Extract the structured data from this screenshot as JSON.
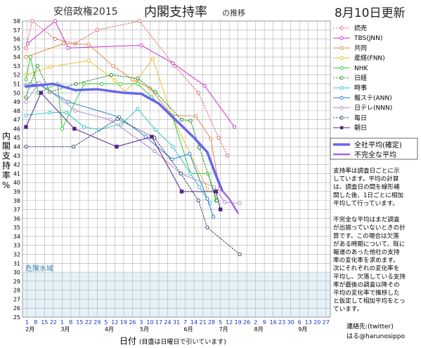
{
  "header": {
    "title_prefix": "安倍政権2015",
    "title_main": "内閣支持率",
    "title_suffix": "の推移",
    "updated": "8月10日更新"
  },
  "colors": {
    "grid": "#b0b0b0",
    "plot_bg": "#ffffff",
    "danger_bg": "#e4f2f8",
    "danger_text": "#2a7fb0",
    "x_ticks": "#1a33cc"
  },
  "chart_data": {
    "type": "line",
    "ylabel": "内閣支持率 %",
    "xlabel": "日付",
    "xlabel_note": "(目盛は日曜日で引いています)",
    "ylim": [
      25,
      58
    ],
    "y_ticks": [
      25,
      26,
      27,
      28,
      29,
      30,
      31,
      32,
      33,
      34,
      35,
      36,
      37,
      38,
      39,
      40,
      41,
      42,
      43,
      44,
      45,
      46,
      47,
      48,
      49,
      50,
      51,
      52,
      53,
      54,
      55,
      56,
      57,
      58
    ],
    "x_days": [
      "1",
      "8",
      "15",
      "22",
      "1",
      "8",
      "15",
      "22",
      "29",
      "5",
      "12",
      "19",
      "26",
      "3",
      "10",
      "17",
      "24",
      "31",
      "7",
      "14",
      "21",
      "28",
      "5",
      "12",
      "19",
      "26",
      "2",
      "9",
      "16",
      "23",
      "30",
      "6",
      "13",
      "20",
      "27"
    ],
    "x_months": [
      {
        "label": "2月",
        "index": 0
      },
      {
        "label": "3月",
        "index": 4
      },
      {
        "label": "4月",
        "index": 9
      },
      {
        "label": "5月",
        "index": 13
      },
      {
        "label": "6月",
        "index": 18
      },
      {
        "label": "7月",
        "index": 22
      },
      {
        "label": "8月",
        "index": 26
      },
      {
        "label": "9月",
        "index": 31
      }
    ],
    "grid": true,
    "danger_zone": {
      "label": "危険水域",
      "from": 25,
      "to": 30
    },
    "legend_position": "right",
    "series": [
      {
        "name": "読売",
        "color": "#e06a6a",
        "dash": "2,2",
        "marker": "circle",
        "width": 1,
        "points": [
          [
            -0.1,
            55
          ],
          [
            0.6,
            58
          ],
          [
            3.2,
            56
          ],
          [
            5.5,
            55.5
          ],
          [
            8,
            57
          ],
          [
            12.8,
            58
          ],
          [
            16.8,
            53
          ],
          [
            19.5,
            50
          ],
          [
            21.8,
            45
          ],
          [
            22.8,
            43
          ]
        ]
      },
      {
        "name": "TBS(JNN)",
        "color": "#cc33cc",
        "dash": "",
        "marker": "circle",
        "width": 1,
        "points": [
          [
            0.1,
            55.5
          ],
          [
            3.2,
            58
          ],
          [
            4.7,
            55
          ],
          [
            13,
            55.3
          ],
          [
            16.6,
            53.3
          ],
          [
            20.2,
            50.8
          ],
          [
            23.6,
            46.2
          ]
        ]
      },
      {
        "name": "共同",
        "color": "#e08a4a",
        "dash": "",
        "marker": "circle",
        "width": 1,
        "points": [
          [
            -0.1,
            54
          ],
          [
            4.2,
            55.5
          ],
          [
            7,
            55.4
          ],
          [
            9.8,
            53
          ],
          [
            12,
            51.5
          ],
          [
            14,
            50.5
          ],
          [
            16.5,
            47.5
          ],
          [
            19.2,
            47.4
          ],
          [
            20.9,
            44.9
          ],
          [
            21.9,
            39.3
          ]
        ]
      },
      {
        "name": "産経(FNN)",
        "color": "#e8c22e",
        "dash": "",
        "marker": "circle",
        "width": 1,
        "points": [
          [
            -0.1,
            52
          ],
          [
            2.7,
            52.9
          ],
          [
            7,
            53.6
          ],
          [
            10,
            51.4
          ],
          [
            11.1,
            50.1
          ],
          [
            12.6,
            51.5
          ],
          [
            14.3,
            53.8
          ],
          [
            16.5,
            47.4
          ],
          [
            20.5,
            39.3
          ]
        ]
      },
      {
        "name": "NHK",
        "color": "#33cc33",
        "dash": "",
        "marker": "circle",
        "width": 1,
        "points": [
          [
            -0.1,
            51.5
          ],
          [
            0.4,
            54
          ],
          [
            1.3,
            50
          ],
          [
            3.5,
            51
          ],
          [
            4,
            46
          ],
          [
            6.5,
            51
          ],
          [
            8.5,
            51
          ],
          [
            10.6,
            51
          ],
          [
            12.6,
            51
          ],
          [
            14.2,
            49.5
          ],
          [
            16.5,
            47.5
          ],
          [
            18.6,
            41
          ],
          [
            20.6,
            41
          ],
          [
            21.5,
            38
          ]
        ]
      },
      {
        "name": "日経",
        "color": "#228822",
        "dash": "2,2",
        "marker": "circle",
        "width": 1,
        "points": [
          [
            -0.1,
            49.5
          ],
          [
            0.4,
            51
          ],
          [
            1.2,
            53
          ],
          [
            2.6,
            50.1
          ],
          [
            5.6,
            51
          ],
          [
            9.6,
            52
          ],
          [
            12.6,
            51.6
          ],
          [
            14.6,
            50.1
          ],
          [
            17.6,
            47
          ],
          [
            18.6,
            46.9
          ],
          [
            19.6,
            43.9
          ],
          [
            21.6,
            38
          ]
        ]
      },
      {
        "name": "時事",
        "color": "#33c4cc",
        "dash": "",
        "marker": "circle",
        "width": 1,
        "points": [
          [
            -0.1,
            47.5
          ],
          [
            2.6,
            47.8
          ],
          [
            4.5,
            47.8
          ],
          [
            6.5,
            46.2
          ],
          [
            8.2,
            45.9
          ],
          [
            10.7,
            46.5
          ],
          [
            12.6,
            48.2
          ],
          [
            14.6,
            45.9
          ],
          [
            16.6,
            44
          ],
          [
            18.6,
            41
          ],
          [
            19.6,
            39.5
          ],
          [
            20.8,
            37.7
          ]
        ]
      },
      {
        "name": "報ステ(ANN)",
        "color": "#2a7fcc",
        "dash": "",
        "marker": "circle",
        "width": 1,
        "points": [
          [
            -0.1,
            50.8
          ],
          [
            1.2,
            51
          ],
          [
            4.7,
            49
          ],
          [
            10.5,
            47.3
          ],
          [
            13.5,
            45.1
          ],
          [
            16.5,
            42.6
          ],
          [
            18.5,
            43.2
          ],
          [
            20.5,
            38.2
          ],
          [
            21.2,
            36.2
          ]
        ]
      },
      {
        "name": "日テレ(NNN)",
        "color": "#b28cd8",
        "dash": "",
        "marker": "circle",
        "width": 1,
        "points": [
          [
            -0.1,
            49
          ],
          [
            1.4,
            51.1
          ],
          [
            5.5,
            48
          ],
          [
            9.5,
            47
          ],
          [
            14.5,
            43.5
          ],
          [
            17.5,
            41
          ],
          [
            21.3,
            39.5
          ],
          [
            22.5,
            37.8
          ],
          [
            24.2,
            37.7
          ]
        ]
      },
      {
        "name": "毎日",
        "color": "#334466",
        "dash": "2,2",
        "marker": "circle",
        "width": 1,
        "points": [
          [
            -0.1,
            44
          ],
          [
            5.3,
            44
          ],
          [
            10.3,
            47.1
          ],
          [
            14.5,
            45
          ],
          [
            17.5,
            41
          ],
          [
            19.5,
            38
          ],
          [
            20.5,
            35
          ],
          [
            24.2,
            32
          ]
        ]
      },
      {
        "name": "朝日",
        "color": "#552288",
        "dash": "",
        "marker": "square",
        "width": 1,
        "points": [
          [
            -0.1,
            46.2
          ],
          [
            1.6,
            50
          ],
          [
            5.4,
            46
          ],
          [
            10.2,
            44
          ],
          [
            14.2,
            45.1
          ],
          [
            17.6,
            39
          ],
          [
            21.5,
            39
          ],
          [
            22,
            37
          ]
        ]
      },
      {
        "name": "全社平均(確定)",
        "color": "#6666ee",
        "dash": "",
        "marker": "none",
        "width": 3.5,
        "points": [
          [
            -0.1,
            50.7
          ],
          [
            3,
            51
          ],
          [
            5.5,
            50.3
          ],
          [
            8,
            50.4
          ],
          [
            11,
            50
          ],
          [
            13,
            49.9
          ],
          [
            15,
            48.8
          ],
          [
            17,
            46.9
          ],
          [
            19,
            45
          ],
          [
            20.5,
            43.4
          ],
          [
            21.5,
            40.8
          ],
          [
            22.2,
            39.1
          ]
        ]
      },
      {
        "name": "不完全な平均",
        "color": "#aa66dd",
        "dash": "",
        "marker": "none",
        "width": 2.5,
        "points": [
          [
            22.2,
            39.1
          ],
          [
            23,
            38.2
          ],
          [
            24,
            36.6
          ]
        ]
      }
    ]
  },
  "note": {
    "lines": [
      "支持率は調査日ごとに示",
      "しています。平均の計算",
      "は、調査日の間を線形補",
      "間した後、1日ごとに相加",
      "平均して行っています。",
      "",
      "不完全な平均はまだ調査",
      "が出揃っていないときの計",
      "算です。この場合は欠落",
      "がある時期について、既に",
      "報道のあった他社の支持",
      "率の変化率を求めます。",
      "次にそれぞれの変化率を",
      "平均し、欠落している支持",
      "率が最後の調査以降その",
      "平均の変化率で推移した",
      "と仮定して相加平均をとっ",
      "ています。"
    ]
  },
  "contact": {
    "line1": "連絡先:(twitter)",
    "line2": "はる@harunosippo"
  }
}
